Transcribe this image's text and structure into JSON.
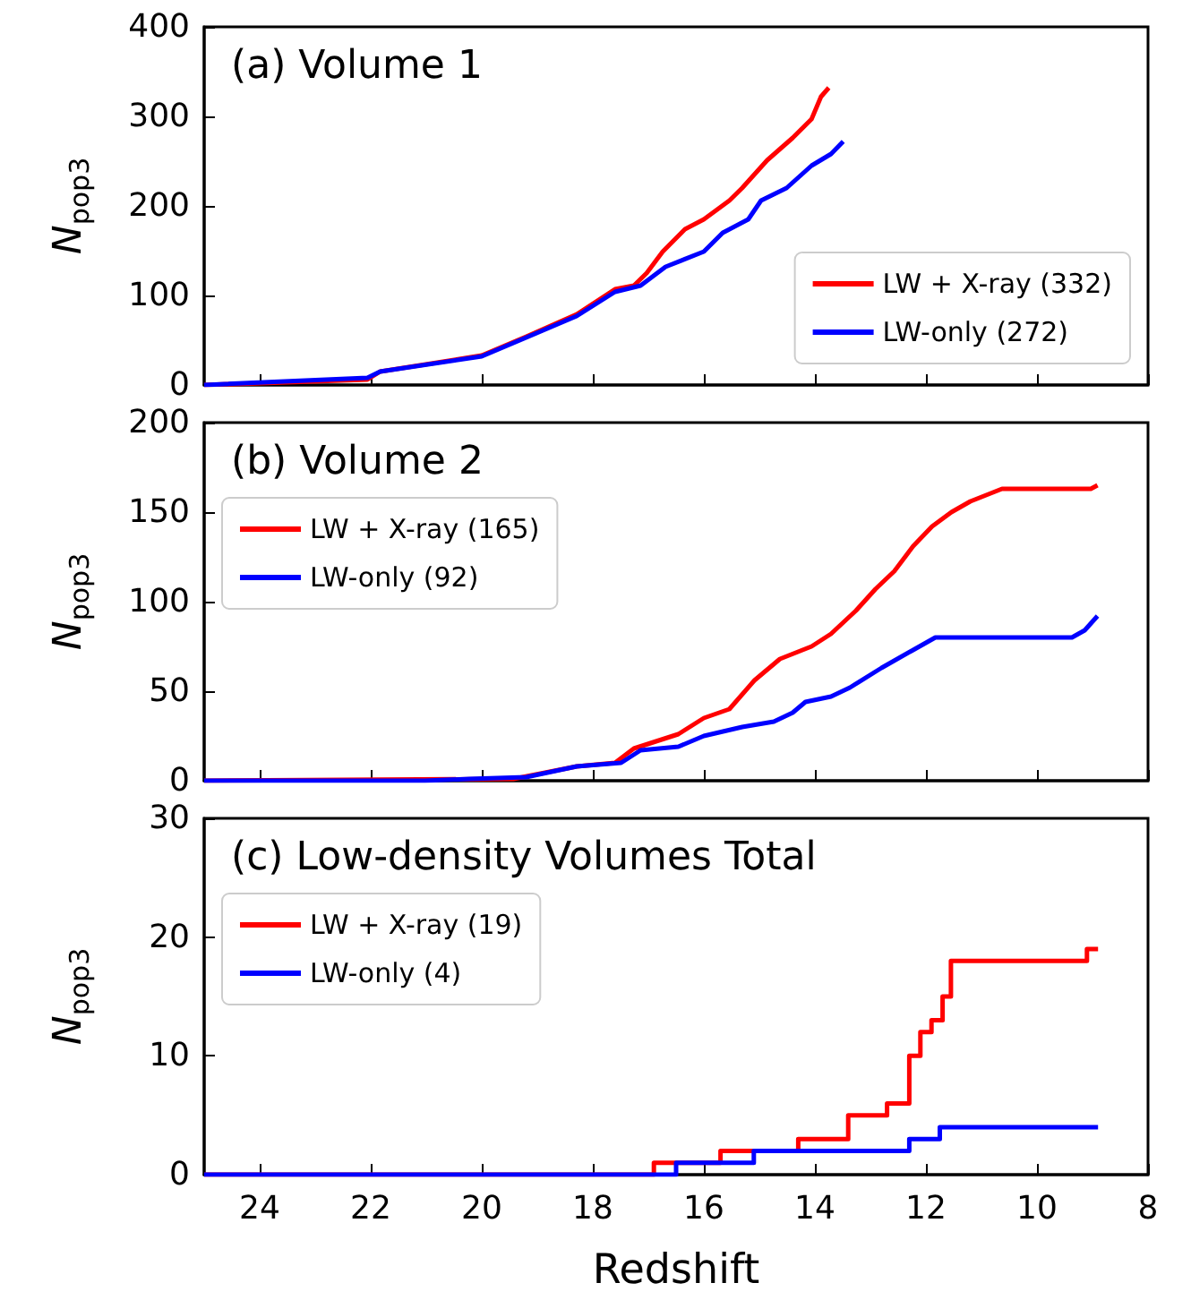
{
  "chart_data": [
    {
      "type": "line",
      "title": "(a) Volume 1",
      "ylabel": "N$_{pop3}$",
      "xlim": [
        25,
        8
      ],
      "xticks": [
        24,
        22,
        20,
        18,
        16,
        14,
        12,
        10,
        8
      ],
      "ylim": [
        0,
        400
      ],
      "yticks": [
        0,
        100,
        200,
        300,
        400
      ],
      "tick_labels": "y",
      "grid": false,
      "legend": "bottom right",
      "marker": "none",
      "series": [
        {
          "name": "LW + X-ray (332)",
          "color": "#ff0000",
          "x": [
            25,
            22.06,
            21.83,
            20.0,
            19.2,
            18.29,
            17.6,
            17.26,
            17.03,
            16.74,
            16.34,
            16.0,
            15.54,
            15.31,
            14.86,
            14.4,
            14.06,
            13.89,
            13.75
          ],
          "values": [
            0,
            6,
            15,
            33,
            54,
            79,
            107,
            111,
            125,
            149,
            174,
            185,
            206,
            220,
            251,
            276,
            297,
            322,
            332
          ]
        },
        {
          "name": "LW-only (272)",
          "color": "#0000ff",
          "x": [
            25,
            22.06,
            21.83,
            20.0,
            19.2,
            18.29,
            17.6,
            17.14,
            16.69,
            16.0,
            15.66,
            15.2,
            14.97,
            14.51,
            14.06,
            13.71,
            13.49
          ],
          "values": [
            0,
            8,
            15,
            32,
            53,
            77,
            104,
            111,
            132,
            149,
            170,
            185,
            206,
            220,
            245,
            258,
            272
          ]
        }
      ]
    },
    {
      "type": "line",
      "title": "(b) Volume 2",
      "ylabel": "N$_{pop3}$",
      "xlim": [
        25,
        8
      ],
      "xticks": [
        24,
        22,
        20,
        18,
        16,
        14,
        12,
        10,
        8
      ],
      "ylim": [
        0,
        200
      ],
      "yticks": [
        0,
        50,
        100,
        150,
        200
      ],
      "tick_labels": "y",
      "grid": false,
      "legend": "top left",
      "marker": "none",
      "series": [
        {
          "name": "LW + X-ray (165)",
          "color": "#ff0000",
          "x": [
            25,
            19.43,
            18.29,
            17.6,
            17.26,
            16.46,
            16.0,
            15.54,
            15.09,
            14.63,
            14.06,
            13.71,
            13.26,
            12.91,
            12.57,
            12.23,
            11.89,
            11.54,
            11.2,
            10.63,
            10.29,
            9.03,
            8.91
          ],
          "values": [
            0,
            1,
            8,
            10,
            18,
            26,
            35,
            40,
            56,
            68,
            75,
            82,
            95,
            107,
            117,
            131,
            142,
            150,
            156,
            163,
            163,
            163,
            165
          ]
        },
        {
          "name": "LW-only (92)",
          "color": "#0000ff",
          "x": [
            25,
            21.03,
            20.23,
            19.2,
            18.29,
            17.49,
            17.14,
            16.46,
            16.0,
            15.31,
            14.74,
            14.4,
            14.17,
            13.71,
            13.37,
            12.8,
            12.23,
            11.83,
            9.37,
            9.14,
            8.91
          ],
          "values": [
            0,
            0,
            1,
            2,
            8,
            10,
            17,
            19,
            25,
            30,
            33,
            38,
            44,
            47,
            52,
            63,
            73,
            80,
            80,
            84,
            92
          ]
        }
      ]
    },
    {
      "type": "step",
      "title": "(c) Low-density Volumes Total",
      "xlabel": "Redshift",
      "ylabel": "N$_{pop3}$",
      "xlim": [
        25,
        8
      ],
      "xticks": [
        24,
        22,
        20,
        18,
        16,
        14,
        12,
        10,
        8
      ],
      "ylim": [
        0,
        30
      ],
      "yticks": [
        0,
        10,
        20,
        30
      ],
      "grid": false,
      "legend": "top left",
      "marker": "none",
      "series": [
        {
          "name": "LW + X-ray (19)",
          "color": "#ff0000",
          "x": [
            25,
            16.9,
            15.7,
            14.3,
            13.4,
            12.7,
            12.3,
            12.1,
            11.9,
            11.7,
            11.55,
            9.1,
            8.9
          ],
          "values": [
            0,
            1,
            2,
            3,
            5,
            6,
            10,
            12,
            13,
            15,
            18,
            19,
            19
          ]
        },
        {
          "name": "LW-only (4)",
          "color": "#0000ff",
          "x": [
            25,
            16.5,
            15.1,
            12.3,
            11.75,
            8.9
          ],
          "values": [
            0,
            1,
            2,
            3,
            4,
            4
          ]
        }
      ]
    }
  ]
}
